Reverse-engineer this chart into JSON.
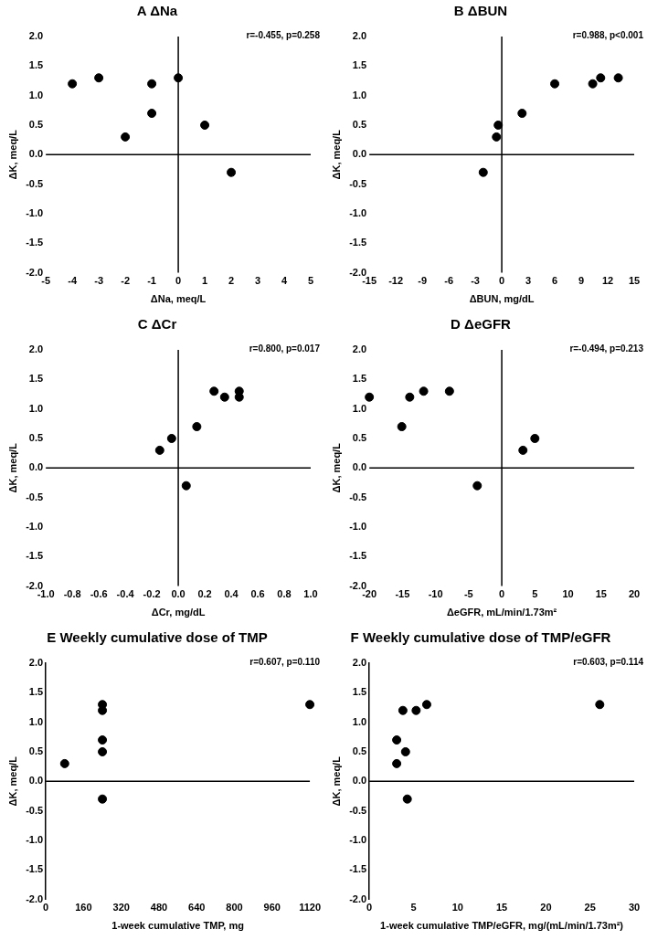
{
  "chart_data": [
    {
      "type": "scatter",
      "title": "A ΔNa",
      "xlabel": "ΔNa, meq/L",
      "ylabel": "ΔK, meq/L",
      "annotations": [
        "r=-0.455, p=0.258"
      ],
      "ref_lines": [
        {
          "axis": "x",
          "value": 0,
          "color": "#000000"
        },
        {
          "axis": "y",
          "value": 0,
          "color": "#000000"
        }
      ],
      "marker": "circle",
      "grid": false,
      "legend": false,
      "series": [
        {
          "color": "#000000",
          "x": [
            -4,
            -3,
            -2,
            -1,
            -1,
            0,
            1,
            2
          ],
          "values": [
            1.2,
            1.3,
            0.3,
            1.2,
            0.7,
            1.3,
            0.5,
            -0.3
          ]
        }
      ],
      "xlim": [
        -5,
        5
      ],
      "xticks": [
        -5,
        -4,
        -3,
        -2,
        -1,
        0,
        1,
        2,
        3,
        4,
        5
      ],
      "ylim": [
        -2,
        2
      ],
      "yticks": [
        {
          "value": -2,
          "label": "-2.0"
        },
        {
          "value": -1.5,
          "label": "-1.5"
        },
        {
          "value": -1,
          "label": "-1.0"
        },
        {
          "value": -0.5,
          "label": "-0.5"
        },
        {
          "value": 0,
          "label": "0.0"
        },
        {
          "value": 0.5,
          "label": "0.5"
        },
        {
          "value": 1,
          "label": "1.0"
        },
        {
          "value": 1.5,
          "label": "1.5"
        },
        {
          "value": 2,
          "label": "2.0"
        }
      ]
    },
    {
      "type": "scatter",
      "title": "B ΔBUN",
      "xlabel": "ΔBUN, mg/dL",
      "ylabel": "ΔK, meq/L",
      "annotations": [
        "r=0.988, p<0.001"
      ],
      "ref_lines": [
        {
          "axis": "x",
          "value": 0,
          "color": "#000000"
        },
        {
          "axis": "y",
          "value": 0,
          "color": "#000000"
        }
      ],
      "marker": "circle",
      "grid": false,
      "legend": false,
      "series": [
        {
          "color": "#000000",
          "x": [
            -2.1,
            -0.6,
            -0.4,
            2.3,
            6,
            10.3,
            11.2,
            13.2
          ],
          "values": [
            -0.3,
            0.3,
            0.5,
            0.7,
            1.2,
            1.2,
            1.3,
            1.3
          ]
        }
      ],
      "xlim": [
        -15,
        15
      ],
      "xticks": [
        -15,
        -12,
        -9,
        -6,
        -3,
        0,
        3,
        6,
        9,
        12,
        15
      ],
      "ylim": [
        -2,
        2
      ],
      "yticks": [
        {
          "value": -2,
          "label": "-2.0"
        },
        {
          "value": -1.5,
          "label": "-1.5"
        },
        {
          "value": -1,
          "label": "-1.0"
        },
        {
          "value": -0.5,
          "label": "-0.5"
        },
        {
          "value": 0,
          "label": "0.0"
        },
        {
          "value": 0.5,
          "label": "0.5"
        },
        {
          "value": 1,
          "label": "1.0"
        },
        {
          "value": 1.5,
          "label": "1.5"
        },
        {
          "value": 2,
          "label": "2.0"
        }
      ]
    },
    {
      "type": "scatter",
      "title": "C ΔCr",
      "xlabel": "ΔCr, mg/dL",
      "ylabel": "ΔK, meq/L",
      "annotations": [
        "r=0.800, p=0.017"
      ],
      "ref_lines": [
        {
          "axis": "x",
          "value": 0,
          "color": "#000000"
        },
        {
          "axis": "y",
          "value": 0,
          "color": "#000000"
        }
      ],
      "marker": "circle",
      "grid": false,
      "legend": false,
      "series": [
        {
          "color": "#000000",
          "x": [
            -0.14,
            -0.05,
            0.06,
            0.14,
            0.27,
            0.35,
            0.46,
            0.46
          ],
          "values": [
            0.3,
            0.5,
            -0.3,
            0.7,
            1.3,
            1.2,
            1.3,
            1.2
          ]
        }
      ],
      "xlim": [
        -1,
        1
      ],
      "xticks": [
        {
          "value": -1,
          "label": "-1.0"
        },
        {
          "value": -0.8,
          "label": "-0.8"
        },
        {
          "value": -0.6,
          "label": "-0.6"
        },
        {
          "value": -0.4,
          "label": "-0.4"
        },
        {
          "value": -0.2,
          "label": "-0.2"
        },
        {
          "value": 0,
          "label": "0.0"
        },
        {
          "value": 0.2,
          "label": "0.2"
        },
        {
          "value": 0.4,
          "label": "0.4"
        },
        {
          "value": 0.6,
          "label": "0.6"
        },
        {
          "value": 0.8,
          "label": "0.8"
        },
        {
          "value": 1,
          "label": "1.0"
        }
      ],
      "ylim": [
        -2,
        2
      ],
      "yticks": [
        {
          "value": -2,
          "label": "-2.0"
        },
        {
          "value": -1.5,
          "label": "-1.5"
        },
        {
          "value": -1,
          "label": "-1.0"
        },
        {
          "value": -0.5,
          "label": "-0.5"
        },
        {
          "value": 0,
          "label": "0.0"
        },
        {
          "value": 0.5,
          "label": "0.5"
        },
        {
          "value": 1,
          "label": "1.0"
        },
        {
          "value": 1.5,
          "label": "1.5"
        },
        {
          "value": 2,
          "label": "2.0"
        }
      ]
    },
    {
      "type": "scatter",
      "title": "D ΔeGFR",
      "xlabel": "ΔeGFR, mL/min/1.73m²",
      "ylabel": "ΔK, meq/L",
      "annotations": [
        "r=-0.494, p=0.213"
      ],
      "ref_lines": [
        {
          "axis": "x",
          "value": 0,
          "color": "#000000"
        },
        {
          "axis": "y",
          "value": 0,
          "color": "#000000"
        }
      ],
      "marker": "circle",
      "grid": false,
      "legend": false,
      "series": [
        {
          "color": "#000000",
          "x": [
            -20,
            -15.1,
            -13.9,
            -11.8,
            -7.9,
            -3.7,
            3.2,
            5
          ],
          "values": [
            1.2,
            0.7,
            1.2,
            1.3,
            1.3,
            -0.3,
            0.3,
            0.5
          ]
        }
      ],
      "xlim": [
        -20,
        20
      ],
      "xticks": [
        -20,
        -15,
        -10,
        -5,
        0,
        5,
        10,
        15,
        20
      ],
      "ylim": [
        -2,
        2
      ],
      "yticks": [
        {
          "value": -2,
          "label": "-2.0"
        },
        {
          "value": -1.5,
          "label": "-1.5"
        },
        {
          "value": -1,
          "label": "-1.0"
        },
        {
          "value": -0.5,
          "label": "-0.5"
        },
        {
          "value": 0,
          "label": "0.0"
        },
        {
          "value": 0.5,
          "label": "0.5"
        },
        {
          "value": 1,
          "label": "1.0"
        },
        {
          "value": 1.5,
          "label": "1.5"
        },
        {
          "value": 2,
          "label": "2.0"
        }
      ]
    },
    {
      "type": "scatter",
      "title": "E Weekly cumulative dose of TMP",
      "xlabel": "1-week cumulative TMP, mg",
      "ylabel": "ΔK, meq/L",
      "annotations": [
        "r=0.607, p=0.110"
      ],
      "ref_lines": [
        {
          "axis": "y",
          "value": 0,
          "color": "#000000"
        }
      ],
      "marker": "circle",
      "grid": false,
      "legend": false,
      "series": [
        {
          "color": "#000000",
          "x": [
            80,
            240,
            240,
            240,
            240,
            240,
            1120
          ],
          "values": [
            0.3,
            1.3,
            1.2,
            0.7,
            0.5,
            -0.3,
            1.3
          ]
        }
      ],
      "xlim": [
        0,
        1120
      ],
      "xticks": [
        0,
        160,
        320,
        480,
        640,
        800,
        960,
        1120
      ],
      "ylim": [
        -2,
        2
      ],
      "yticks": [
        {
          "value": -2,
          "label": "-2.0"
        },
        {
          "value": -1.5,
          "label": "-1.5"
        },
        {
          "value": -1,
          "label": "-1.0"
        },
        {
          "value": -0.5,
          "label": "-0.5"
        },
        {
          "value": 0,
          "label": "0.0"
        },
        {
          "value": 0.5,
          "label": "0.5"
        },
        {
          "value": 1,
          "label": "1.0"
        },
        {
          "value": 1.5,
          "label": "1.5"
        },
        {
          "value": 2,
          "label": "2.0"
        }
      ]
    },
    {
      "type": "scatter",
      "title": "F Weekly cumulative dose of TMP/eGFR",
      "xlabel": "1-week cumulative TMP/eGFR, mg/(mL/min/1.73m²)",
      "ylabel": "ΔK, meq/L",
      "annotations": [
        "r=0.603, p=0.114"
      ],
      "ref_lines": [
        {
          "axis": "y",
          "value": 0,
          "color": "#000000"
        }
      ],
      "marker": "circle",
      "grid": false,
      "legend": false,
      "series": [
        {
          "color": "#000000",
          "x": [
            3.1,
            3.1,
            3.8,
            4.1,
            4.3,
            5.3,
            6.5,
            26.1
          ],
          "values": [
            0.7,
            0.3,
            1.2,
            0.5,
            -0.3,
            1.2,
            1.3,
            1.3
          ]
        }
      ],
      "xlim": [
        0,
        30
      ],
      "xticks": [
        0,
        5,
        10,
        15,
        20,
        25,
        30
      ],
      "ylim": [
        -2,
        2
      ],
      "yticks": [
        {
          "value": -2,
          "label": "-2.0"
        },
        {
          "value": -1.5,
          "label": "-1.5"
        },
        {
          "value": -1,
          "label": "-1.0"
        },
        {
          "value": -0.5,
          "label": "-0.5"
        },
        {
          "value": 0,
          "label": "0.0"
        },
        {
          "value": 0.5,
          "label": "0.5"
        },
        {
          "value": 1,
          "label": "1.0"
        },
        {
          "value": 1.5,
          "label": "1.5"
        },
        {
          "value": 2,
          "label": "2.0"
        }
      ]
    }
  ]
}
